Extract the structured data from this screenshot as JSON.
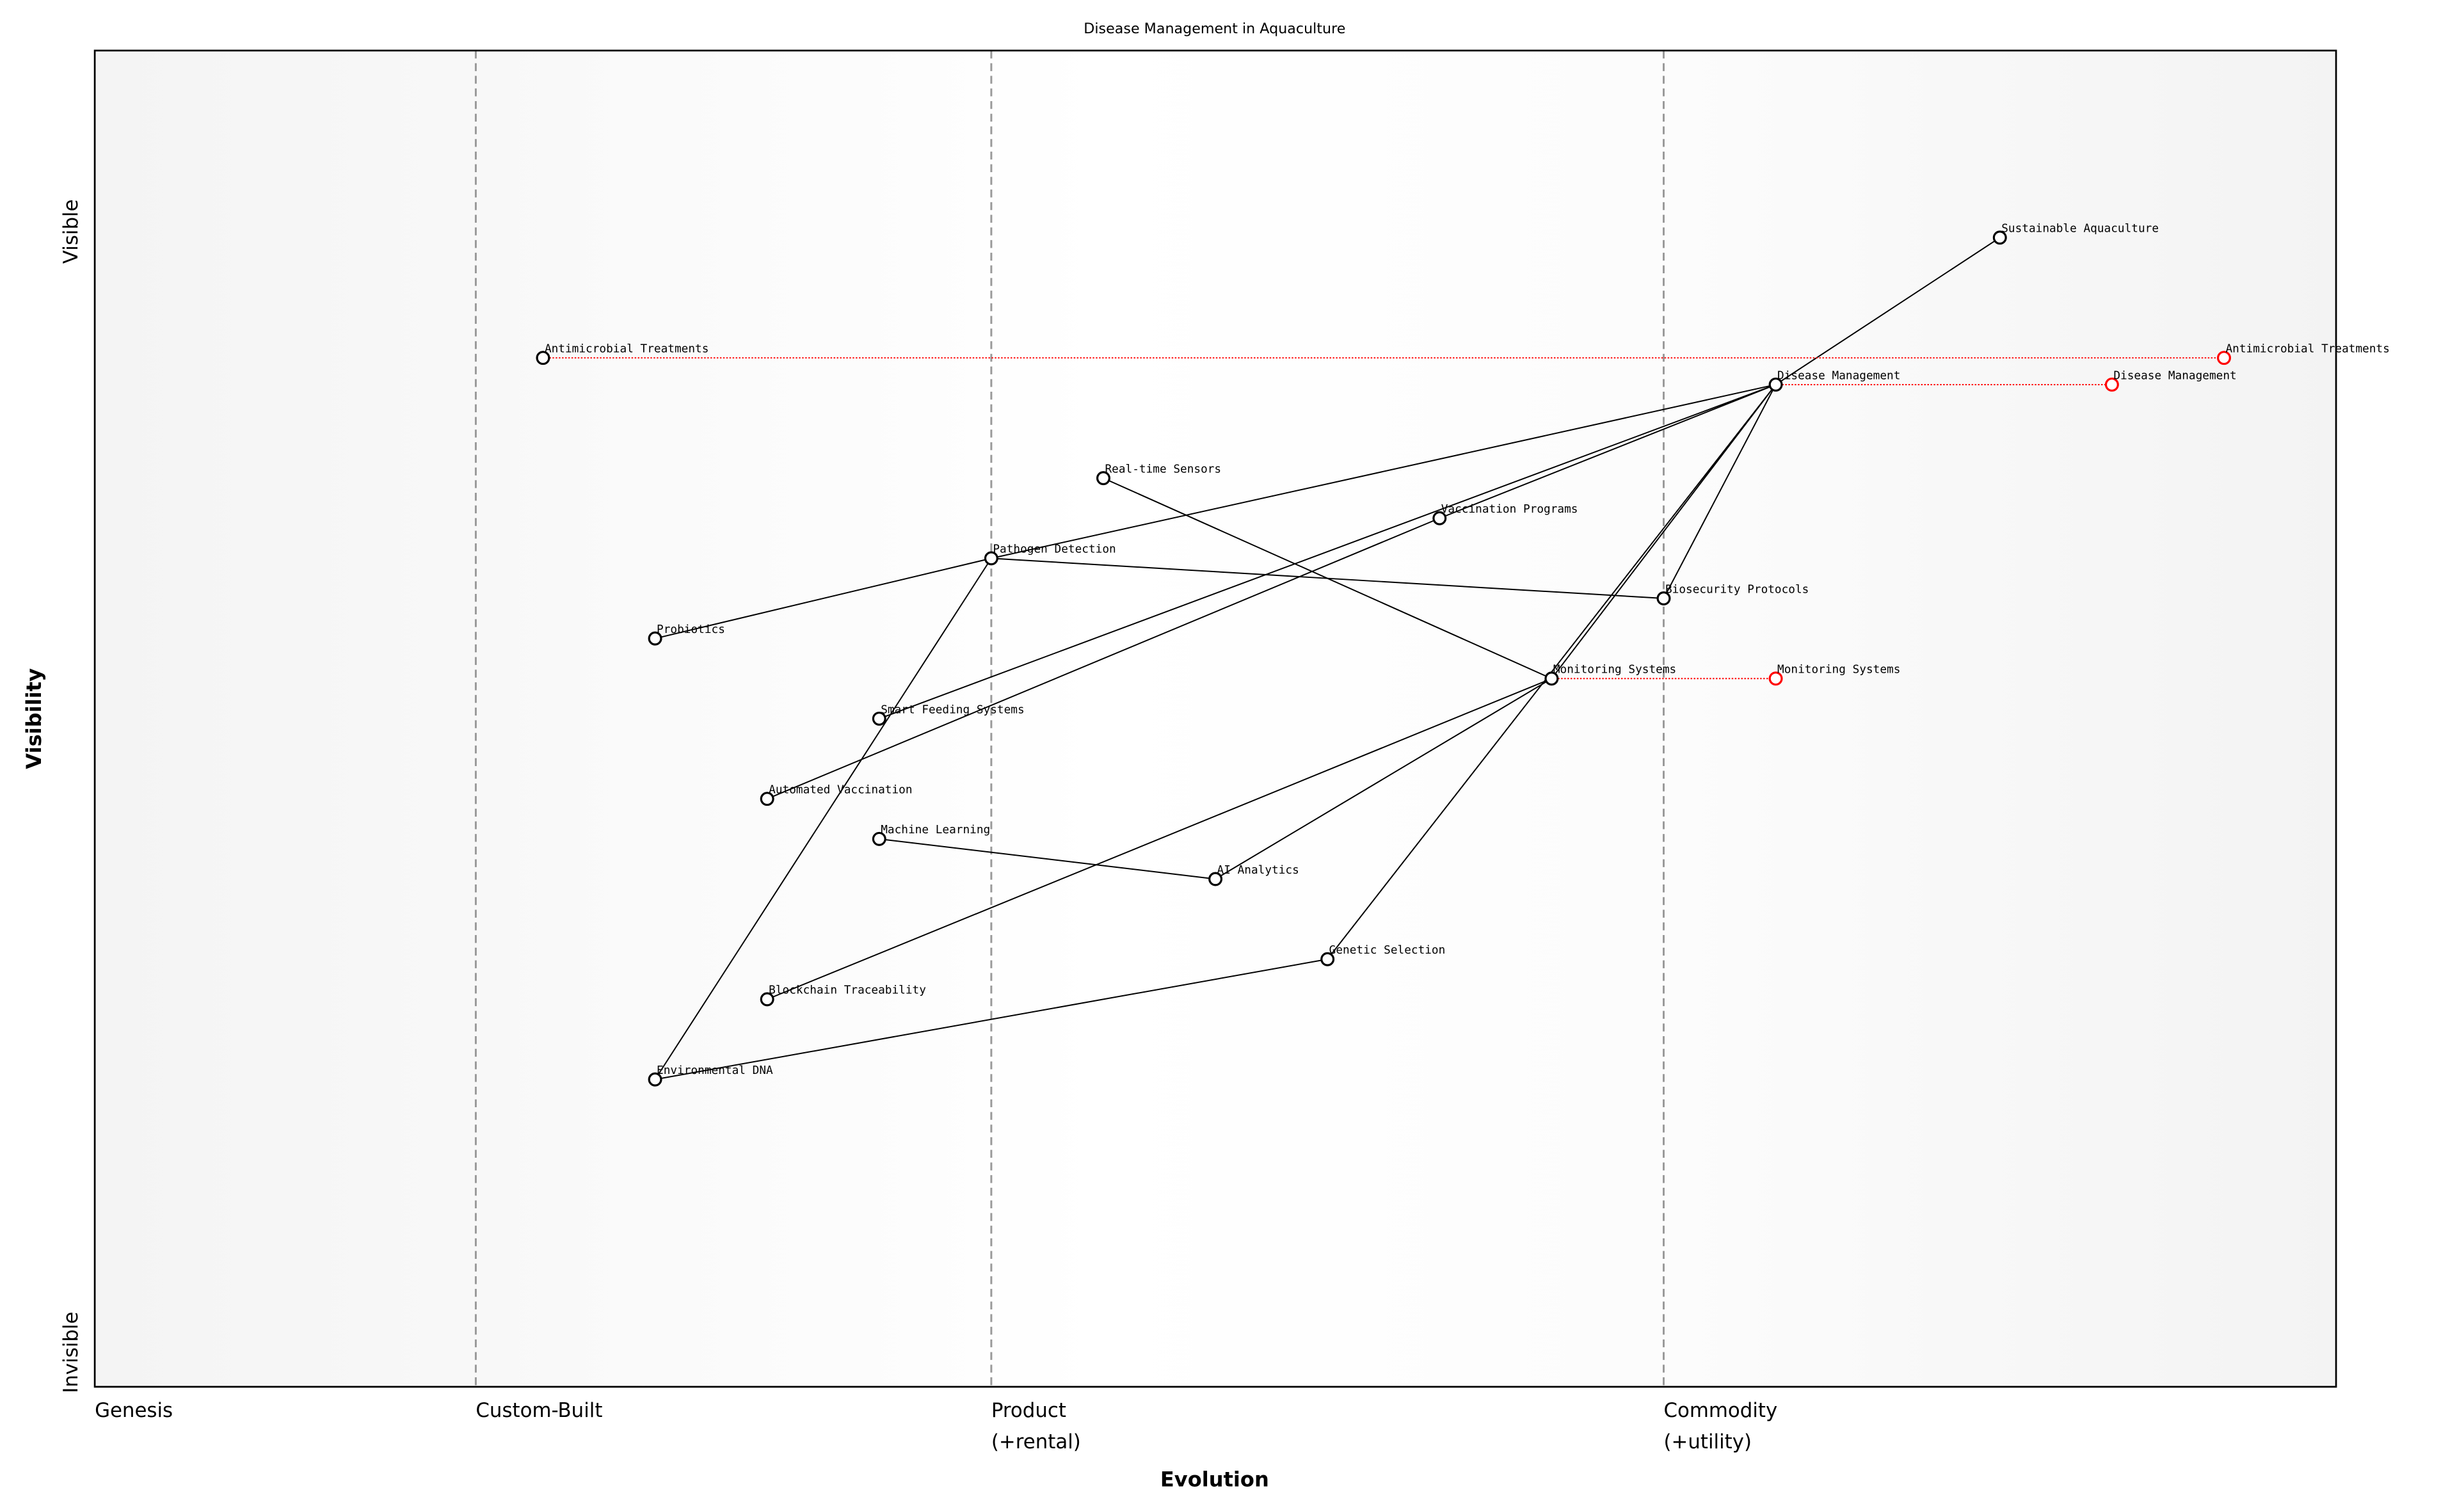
{
  "title": "Disease Management in Aquaculture",
  "xlabel": "Evolution",
  "ylabel": "Visibility",
  "y_ends": {
    "top": "Visible",
    "bottom": "Invisible"
  },
  "stages": [
    {
      "label": "Genesis",
      "position": 0.0
    },
    {
      "label": "Custom-Built",
      "position": 0.17
    },
    {
      "label": "Product",
      "sublabel": "(+rental)",
      "position": 0.4
    },
    {
      "label": "Commodity",
      "sublabel": "(+utility)",
      "position": 0.7
    }
  ],
  "colors": {
    "node": "#000000",
    "evolved": "#ff0000",
    "divider": "#999999"
  },
  "chart_data": {
    "type": "wardley-map",
    "xlim": [
      0,
      1
    ],
    "ylim": [
      0,
      1
    ],
    "components": [
      {
        "name": "Sustainable Aquaculture",
        "evolution": 0.85,
        "visibility": 0.86
      },
      {
        "name": "Antimicrobial Treatments",
        "evolution": 0.2,
        "visibility": 0.77
      },
      {
        "name": "Disease Management",
        "evolution": 0.75,
        "visibility": 0.75
      },
      {
        "name": "Real-time Sensors",
        "evolution": 0.45,
        "visibility": 0.68
      },
      {
        "name": "Vaccination Programs",
        "evolution": 0.6,
        "visibility": 0.65
      },
      {
        "name": "Pathogen Detection",
        "evolution": 0.4,
        "visibility": 0.62
      },
      {
        "name": "Biosecurity Protocols",
        "evolution": 0.7,
        "visibility": 0.59
      },
      {
        "name": "Probiotics",
        "evolution": 0.25,
        "visibility": 0.56
      },
      {
        "name": "Monitoring Systems",
        "evolution": 0.65,
        "visibility": 0.53
      },
      {
        "name": "Smart Feeding Systems",
        "evolution": 0.35,
        "visibility": 0.5
      },
      {
        "name": "Automated Vaccination",
        "evolution": 0.3,
        "visibility": 0.44
      },
      {
        "name": "Machine Learning",
        "evolution": 0.35,
        "visibility": 0.41
      },
      {
        "name": "AI Analytics",
        "evolution": 0.5,
        "visibility": 0.38
      },
      {
        "name": "Genetic Selection",
        "evolution": 0.55,
        "visibility": 0.32
      },
      {
        "name": "Blockchain Traceability",
        "evolution": 0.3,
        "visibility": 0.29
      },
      {
        "name": "Environmental DNA",
        "evolution": 0.25,
        "visibility": 0.23
      }
    ],
    "evolutions": [
      {
        "name": "Antimicrobial Treatments",
        "from": 0.2,
        "to": 0.95,
        "visibility": 0.77
      },
      {
        "name": "Disease Management",
        "from": 0.75,
        "to": 0.9,
        "visibility": 0.75
      },
      {
        "name": "Monitoring Systems",
        "from": 0.65,
        "to": 0.75,
        "visibility": 0.53
      }
    ],
    "links": [
      [
        "Sustainable Aquaculture",
        "Disease Management"
      ],
      [
        "Disease Management",
        "Pathogen Detection"
      ],
      [
        "Disease Management",
        "Vaccination Programs"
      ],
      [
        "Disease Management",
        "Smart Feeding Systems"
      ],
      [
        "Disease Management",
        "Monitoring Systems"
      ],
      [
        "Disease Management",
        "Genetic Selection"
      ],
      [
        "Disease Management",
        "Biosecurity Protocols"
      ],
      [
        "Vaccination Programs",
        "Automated Vaccination"
      ],
      [
        "Pathogen Detection",
        "Probiotics"
      ],
      [
        "Pathogen Detection",
        "Biosecurity Protocols"
      ],
      [
        "Pathogen Detection",
        "Environmental DNA"
      ],
      [
        "Real-time Sensors",
        "Monitoring Systems"
      ],
      [
        "Monitoring Systems",
        "Blockchain Traceability"
      ],
      [
        "Monitoring Systems",
        "AI Analytics"
      ],
      [
        "Machine Learning",
        "AI Analytics"
      ],
      [
        "Genetic Selection",
        "Environmental DNA"
      ]
    ]
  }
}
